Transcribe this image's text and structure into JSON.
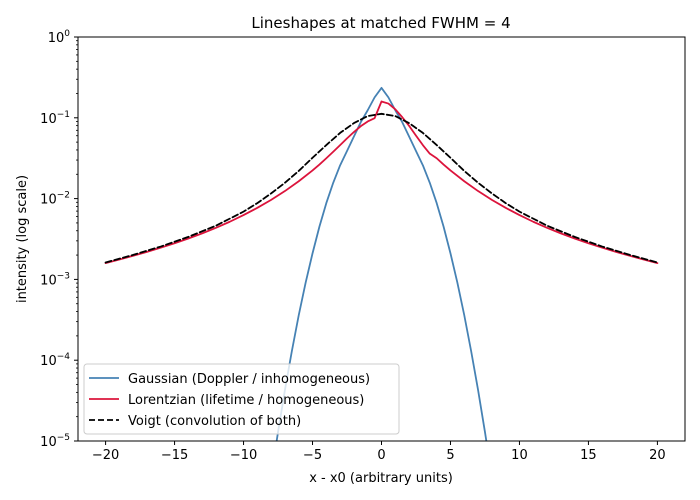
{
  "chart_data": {
    "type": "line",
    "title": "Lineshapes at matched FWHM = 4",
    "xlabel": "x - x0 (arbitrary units)",
    "ylabel": "intensity (log scale)",
    "xlim": [
      -22,
      22
    ],
    "ylim": [
      1e-05,
      1
    ],
    "yscale": "log",
    "x_ticks": [
      -20,
      -15,
      -10,
      -5,
      0,
      5,
      10,
      15,
      20
    ],
    "x_tick_labels": [
      "−20",
      "−15",
      "−10",
      "−5",
      "0",
      "5",
      "10",
      "15",
      "20"
    ],
    "y_ticks": [
      1e-05,
      0.0001,
      0.001,
      0.01,
      0.1,
      1
    ],
    "y_tick_labels": [
      {
        "base": "10",
        "exp": "−5"
      },
      {
        "base": "10",
        "exp": "−4"
      },
      {
        "base": "10",
        "exp": "−3"
      },
      {
        "base": "10",
        "exp": "−2"
      },
      {
        "base": "10",
        "exp": "−1"
      },
      {
        "base": "10",
        "exp": "0"
      }
    ],
    "grid": false,
    "legend_position": "lower-left",
    "series": [
      {
        "name": "Gaussian (Doppler / inhomogeneous)",
        "color": "#4682b4",
        "dash": "solid",
        "x": [
          -8,
          -7.5,
          -7,
          -6.5,
          -6,
          -5.5,
          -5,
          -4.5,
          -4,
          -3.5,
          -3,
          -2.5,
          -2,
          -1.5,
          -1,
          -0.5,
          0,
          0.5,
          1,
          1.5,
          2,
          2.5,
          3,
          3.5,
          4,
          4.5,
          5,
          5.5,
          6,
          6.5,
          7,
          7.5,
          8
        ],
        "y": [
          3.6e-06,
          1.29e-05,
          4.28e-05,
          0.000129,
          0.00036,
          0.00091,
          0.0021,
          0.0045,
          0.0088,
          0.0157,
          0.0258,
          0.0388,
          0.0587,
          0.0885,
          0.124,
          0.179,
          0.2348,
          0.179,
          0.124,
          0.0885,
          0.0587,
          0.0388,
          0.0258,
          0.0157,
          0.0088,
          0.0045,
          0.0021,
          0.00091,
          0.00036,
          0.000129,
          4.28e-05,
          1.29e-05,
          3.6e-06
        ]
      },
      {
        "name": "Lorentzian (lifetime / homogeneous)",
        "color": "#dc143c",
        "dash": "solid",
        "x": [
          -20,
          -19,
          -18,
          -17,
          -16,
          -15,
          -14,
          -13,
          -12,
          -11,
          -10,
          -9,
          -8,
          -7,
          -6,
          -5,
          -4.5,
          -4,
          -3.5,
          -3,
          -2.5,
          -2,
          -1.5,
          -1,
          -0.5,
          0,
          0.5,
          1,
          1.5,
          2,
          2.5,
          3,
          3.5,
          4,
          4.5,
          5,
          6,
          7,
          8,
          9,
          10,
          11,
          12,
          13,
          14,
          15,
          16,
          17,
          18,
          19,
          20
        ],
        "y": [
          0.00159,
          0.00176,
          0.00196,
          0.00219,
          0.00247,
          0.0028,
          0.00321,
          0.00371,
          0.00435,
          0.00517,
          0.00625,
          0.00769,
          0.00965,
          0.0124,
          0.0164,
          0.0223,
          0.0264,
          0.0316,
          0.038,
          0.0459,
          0.0556,
          0.0667,
          0.0788,
          0.0901,
          0.099,
          0.1592,
          0.15,
          0.1273,
          0.1019,
          0.0796,
          0.0601,
          0.0459,
          0.036,
          0.0316,
          0.0264,
          0.0223,
          0.0164,
          0.0124,
          0.00965,
          0.00769,
          0.00625,
          0.00517,
          0.00435,
          0.00371,
          0.00321,
          0.0028,
          0.00247,
          0.00219,
          0.00196,
          0.00176,
          0.00159
        ]
      },
      {
        "name": "Voigt (convolution of both)",
        "color": "#000000",
        "dash": "dashed",
        "x": [
          -20,
          -18,
          -16,
          -14,
          -12,
          -10,
          -9,
          -8,
          -7,
          -6,
          -5,
          -4,
          -3,
          -2,
          -1,
          0,
          1,
          2,
          3,
          4,
          5,
          6,
          7,
          8,
          9,
          10,
          12,
          14,
          16,
          18,
          20
        ],
        "y": [
          0.00162,
          0.00201,
          0.00255,
          0.00336,
          0.00462,
          0.0069,
          0.0088,
          0.0116,
          0.0157,
          0.022,
          0.032,
          0.046,
          0.065,
          0.086,
          0.105,
          0.112,
          0.105,
          0.086,
          0.065,
          0.046,
          0.032,
          0.022,
          0.0157,
          0.0116,
          0.0088,
          0.0069,
          0.00462,
          0.00336,
          0.00255,
          0.00201,
          0.00162
        ]
      }
    ]
  }
}
